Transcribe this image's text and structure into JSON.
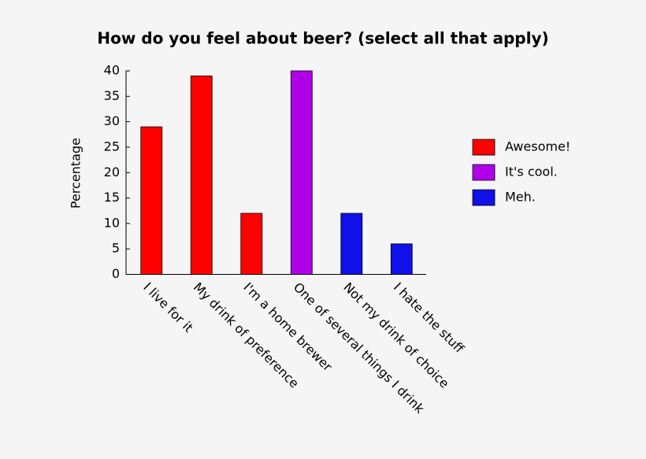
{
  "chart_data": {
    "type": "bar",
    "title": "How do you feel about beer? (select all that apply)",
    "ylabel": "Percentage",
    "categories": [
      "I live for it",
      "My drink of preference",
      "I'm a home brewer",
      "One of several things I drink",
      "Not my drink of choice",
      "I hate the stuff"
    ],
    "series": [
      {
        "name": "Awesome!",
        "color": "#ff0000",
        "values": [
          29,
          39,
          12,
          null,
          null,
          null
        ]
      },
      {
        "name": "It's cool.",
        "color": "#b000e8",
        "values": [
          null,
          null,
          null,
          40,
          null,
          null
        ]
      },
      {
        "name": "Meh.",
        "color": "#1010e8",
        "values": [
          null,
          null,
          null,
          null,
          12,
          6
        ]
      }
    ],
    "ylim": [
      0,
      40
    ],
    "yticks": [
      0,
      5,
      10,
      15,
      20,
      25,
      30,
      35,
      40
    ],
    "legend": "right"
  }
}
